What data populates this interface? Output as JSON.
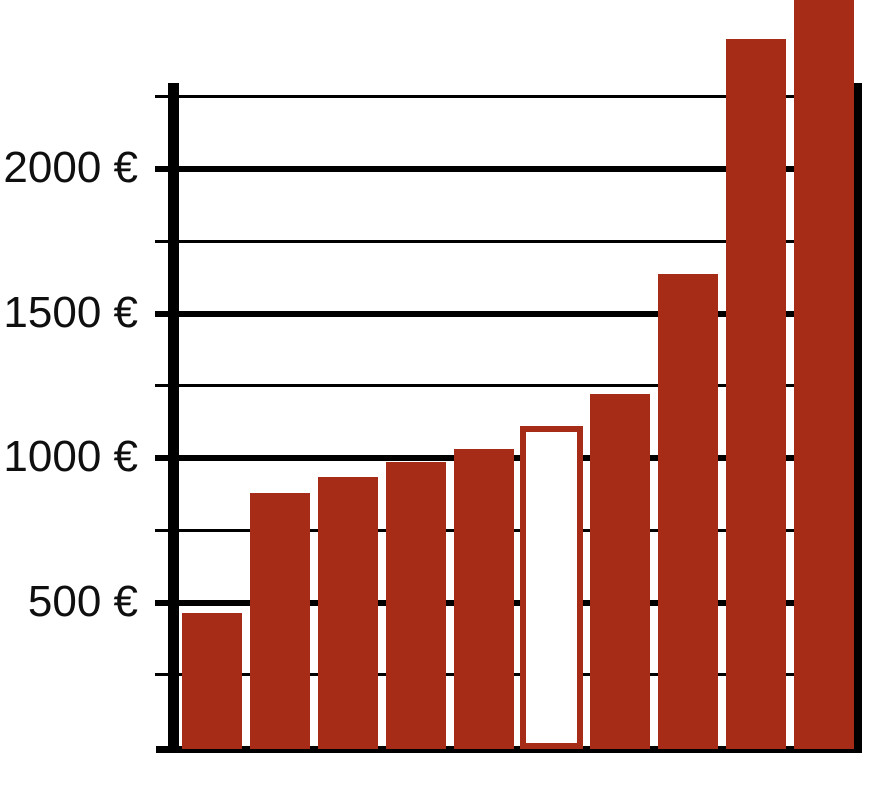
{
  "chart_data": {
    "type": "bar",
    "title": "",
    "xlabel": "",
    "ylabel": "",
    "currency": "EUR",
    "bars": [
      {
        "value": 465,
        "style": "filled"
      },
      {
        "value": 880,
        "style": "filled"
      },
      {
        "value": 935,
        "style": "filled"
      },
      {
        "value": 985,
        "style": "filled"
      },
      {
        "value": 1030,
        "style": "filled"
      },
      {
        "value": 1110,
        "style": "outlined"
      },
      {
        "value": 1220,
        "style": "filled"
      },
      {
        "value": 1635,
        "style": "filled"
      },
      {
        "value": 2450,
        "style": "filled",
        "overflows_plot_frame": true
      },
      {
        "value": 2700,
        "style": "filled",
        "overflows_plot_frame": true,
        "cut_off_at_image_top": true,
        "estimated": true
      }
    ],
    "y_axis": {
      "major_ticks": [
        {
          "value": 2000,
          "label": "2000 €"
        },
        {
          "value": 1500,
          "label": "1500 €"
        },
        {
          "value": 1000,
          "label": "1000 €"
        },
        {
          "value": 500,
          "label": "500 €"
        }
      ],
      "minor_tick_values": [
        2250,
        1750,
        1250,
        750,
        250
      ],
      "ylim": [
        0,
        2300
      ]
    },
    "x_axis": {
      "labels_visible": false
    },
    "grid": true,
    "legend": false,
    "colors": {
      "bar_fill": "#a62c18",
      "outlined_bar_fill": "#ffffff",
      "outlined_bar_border": "#a62c18",
      "axis": "#000000",
      "label_text": "#0f0f0f",
      "background": "#ffffff"
    }
  }
}
